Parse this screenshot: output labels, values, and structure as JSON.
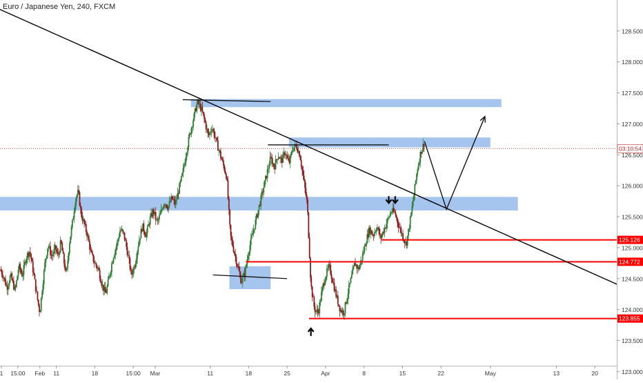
{
  "chart_data": {
    "type": "candlestick",
    "title": "Euro / Japanese Yen, 240, FXCM",
    "y_axis": {
      "ticks": [
        123.0,
        123.5,
        124.0,
        124.5,
        125.0,
        125.5,
        126.0,
        126.5,
        127.0,
        127.5,
        128.0,
        128.5
      ],
      "tick_labels": [
        "123.000",
        "123.500",
        "124.000",
        "124.500",
        "125.000",
        "125.500",
        "126.000",
        "126.500",
        "127.000",
        "127.500",
        "128.000",
        "128.500"
      ],
      "range": [
        122.87,
        129.0
      ],
      "position": "right"
    },
    "x_axis": {
      "tick_labels": [
        "1",
        "15:00",
        "Feb",
        "11",
        "18",
        "15:00",
        "Mar",
        "11",
        "18",
        "25",
        "Apr",
        "8",
        "15",
        "22",
        "May",
        "13",
        "20"
      ],
      "tick_dates": [
        "2019-02-01",
        "2019-02-04",
        "2019-02-08",
        "2019-02-11",
        "2019-02-18",
        "2019-02-25",
        "2019-03-01",
        "2019-03-11",
        "2019-03-18",
        "2019-03-25",
        "2019-04-01",
        "2019-04-08",
        "2019-04-15",
        "2019-04-22",
        "2019-05-01",
        "2019-05-13",
        "2019-05-20"
      ],
      "range": [
        "2019-01-31T18:00",
        "2019-05-24"
      ]
    },
    "colors": {
      "up": "#2e7d32",
      "down": "#8b1a1a",
      "zone": "#8fb5ea",
      "level_line": "#ff0000",
      "trend": "#000000",
      "price_line": "#c62828"
    },
    "price_path": [
      [
        "2019-01-31T18:00",
        124.65
      ],
      [
        "2019-02-01T08:00",
        124.55
      ],
      [
        "2019-02-02T00:00",
        124.35
      ],
      [
        "2019-02-02T16:00",
        124.55
      ],
      [
        "2019-02-03T12:00",
        124.3
      ],
      [
        "2019-02-04T04:00",
        124.7
      ],
      [
        "2019-02-04T20:00",
        124.55
      ],
      [
        "2019-02-05T12:00",
        124.85
      ],
      [
        "2019-02-06T04:00",
        124.95
      ],
      [
        "2019-02-06T20:00",
        124.6
      ],
      [
        "2019-02-07T12:00",
        124.2
      ],
      [
        "2019-02-08T00:00",
        123.95
      ],
      [
        "2019-02-08T12:00",
        124.4
      ],
      [
        "2019-02-09T00:00",
        124.8
      ],
      [
        "2019-02-09T12:00",
        125.05
      ],
      [
        "2019-02-10T04:00",
        124.85
      ],
      [
        "2019-02-10T20:00",
        125.0
      ],
      [
        "2019-02-11T08:00",
        124.85
      ],
      [
        "2019-02-11T20:00",
        125.1
      ],
      [
        "2019-02-12T08:00",
        124.8
      ],
      [
        "2019-02-12T20:00",
        124.55
      ],
      [
        "2019-02-13T08:00",
        125.05
      ],
      [
        "2019-02-14T00:00",
        125.45
      ],
      [
        "2019-02-14T12:00",
        125.8
      ],
      [
        "2019-02-15T00:00",
        125.9
      ],
      [
        "2019-02-15T12:00",
        125.55
      ],
      [
        "2019-02-16T04:00",
        125.35
      ],
      [
        "2019-02-16T16:00",
        125.2
      ],
      [
        "2019-02-17T08:00",
        124.9
      ],
      [
        "2019-02-18T00:00",
        124.75
      ],
      [
        "2019-02-18T16:00",
        124.65
      ],
      [
        "2019-02-19T08:00",
        124.4
      ],
      [
        "2019-02-20T00:00",
        124.25
      ],
      [
        "2019-02-20T16:00",
        124.55
      ],
      [
        "2019-02-21T08:00",
        124.85
      ],
      [
        "2019-02-22T00:00",
        125.05
      ],
      [
        "2019-02-22T16:00",
        125.3
      ],
      [
        "2019-02-23T08:00",
        125.2
      ],
      [
        "2019-02-24T00:00",
        124.9
      ],
      [
        "2019-02-24T16:00",
        124.55
      ],
      [
        "2019-02-25T08:00",
        124.75
      ],
      [
        "2019-02-26T00:00",
        125.1
      ],
      [
        "2019-02-26T16:00",
        125.35
      ],
      [
        "2019-02-27T08:00",
        125.2
      ],
      [
        "2019-02-28T00:00",
        125.45
      ],
      [
        "2019-02-28T16:00",
        125.6
      ],
      [
        "2019-03-01T08:00",
        125.4
      ],
      [
        "2019-03-02T00:00",
        125.55
      ],
      [
        "2019-03-02T16:00",
        125.75
      ],
      [
        "2019-03-03T08:00",
        125.65
      ],
      [
        "2019-03-04T00:00",
        125.8
      ],
      [
        "2019-03-04T16:00",
        125.7
      ],
      [
        "2019-03-05T08:00",
        125.95
      ],
      [
        "2019-03-06T00:00",
        126.2
      ],
      [
        "2019-03-06T16:00",
        126.55
      ],
      [
        "2019-03-07T08:00",
        126.85
      ],
      [
        "2019-03-08T00:00",
        127.1
      ],
      [
        "2019-03-08T16:00",
        127.35
      ],
      [
        "2019-03-09T08:00",
        127.25
      ],
      [
        "2019-03-10T00:00",
        127.05
      ],
      [
        "2019-03-10T16:00",
        126.8
      ],
      [
        "2019-03-11T08:00",
        126.95
      ],
      [
        "2019-03-12T00:00",
        126.75
      ],
      [
        "2019-03-12T16:00",
        126.55
      ],
      [
        "2019-03-13T08:00",
        126.35
      ],
      [
        "2019-03-14T00:00",
        126.15
      ],
      [
        "2019-03-14T16:00",
        125.2
      ],
      [
        "2019-03-15T08:00",
        124.95
      ],
      [
        "2019-03-16T00:00",
        124.7
      ],
      [
        "2019-03-16T16:00",
        124.45
      ],
      [
        "2019-03-17T08:00",
        124.6
      ],
      [
        "2019-03-18T00:00",
        124.95
      ],
      [
        "2019-03-18T16:00",
        125.2
      ],
      [
        "2019-03-19T08:00",
        125.45
      ],
      [
        "2019-03-20T00:00",
        125.7
      ],
      [
        "2019-03-20T16:00",
        125.95
      ],
      [
        "2019-03-21T08:00",
        126.2
      ],
      [
        "2019-03-22T00:00",
        126.45
      ],
      [
        "2019-03-22T16:00",
        126.3
      ],
      [
        "2019-03-23T08:00",
        126.5
      ],
      [
        "2019-03-24T00:00",
        126.4
      ],
      [
        "2019-03-24T16:00",
        126.55
      ],
      [
        "2019-03-25T08:00",
        126.35
      ],
      [
        "2019-03-26T00:00",
        126.6
      ],
      [
        "2019-03-26T16:00",
        126.65
      ],
      [
        "2019-03-27T08:00",
        126.5
      ],
      [
        "2019-03-28T00:00",
        126.1
      ],
      [
        "2019-03-28T16:00",
        125.7
      ],
      [
        "2019-03-29T08:00",
        124.4
      ],
      [
        "2019-03-30T00:00",
        124.0
      ],
      [
        "2019-03-30T16:00",
        123.95
      ],
      [
        "2019-03-31T08:00",
        124.3
      ],
      [
        "2019-04-01T00:00",
        124.55
      ],
      [
        "2019-04-01T16:00",
        124.7
      ],
      [
        "2019-04-02T08:00",
        124.45
      ],
      [
        "2019-04-03T00:00",
        124.2
      ],
      [
        "2019-04-03T16:00",
        124.0
      ],
      [
        "2019-04-04T08:00",
        123.95
      ],
      [
        "2019-04-05T00:00",
        124.25
      ],
      [
        "2019-04-05T16:00",
        124.5
      ],
      [
        "2019-04-06T08:00",
        124.75
      ],
      [
        "2019-04-07T00:00",
        124.65
      ],
      [
        "2019-04-07T16:00",
        124.85
      ],
      [
        "2019-04-08T08:00",
        125.1
      ],
      [
        "2019-04-09T00:00",
        125.3
      ],
      [
        "2019-04-09T16:00",
        125.2
      ],
      [
        "2019-04-10T08:00",
        125.35
      ],
      [
        "2019-04-11T00:00",
        125.15
      ],
      [
        "2019-04-11T16:00",
        125.3
      ],
      [
        "2019-04-12T08:00",
        125.45
      ],
      [
        "2019-04-13T00:00",
        125.6
      ],
      [
        "2019-04-13T16:00",
        125.55
      ],
      [
        "2019-04-14T08:00",
        125.35
      ],
      [
        "2019-04-15T00:00",
        125.2
      ],
      [
        "2019-04-15T16:00",
        125.05
      ],
      [
        "2019-04-16T08:00",
        125.4
      ],
      [
        "2019-04-17T00:00",
        125.8
      ],
      [
        "2019-04-17T16:00",
        126.25
      ],
      [
        "2019-04-18T08:00",
        126.55
      ],
      [
        "2019-04-19T00:00",
        126.7
      ]
    ],
    "zones": [
      {
        "from": "2019-03-07T12:00",
        "to": "2019-05-03",
        "low": 127.27,
        "high": 127.4
      },
      {
        "from": "2019-03-25T08:00",
        "to": "2019-05-01",
        "low": 126.62,
        "high": 126.78
      },
      {
        "from": "2019-01-31T18:00",
        "to": "2019-05-06",
        "low": 125.6,
        "high": 125.82
      },
      {
        "from": "2019-03-14T12:00",
        "to": "2019-03-22",
        "low": 124.33,
        "high": 124.7
      }
    ],
    "levels": [
      {
        "label": "125.126",
        "value": 125.126,
        "from": "2019-04-11T04:00"
      },
      {
        "label": "124.772",
        "value": 124.772,
        "from": "2019-03-17T12:00"
      },
      {
        "label": "123.855",
        "value": 123.855,
        "from": "2019-03-29T00:00"
      }
    ],
    "current_price": {
      "label": "03:10:54",
      "value": 126.6
    },
    "trend_line": {
      "x1": "2019-01-31T16:00",
      "y1": 128.85,
      "x2": "2019-05-24",
      "y2": 124.41
    },
    "drawn_segments": [
      {
        "x1": "2019-03-06T00:00",
        "y1": 127.39,
        "x2": "2019-03-22T00:00",
        "y2": 127.36
      },
      {
        "x1": "2019-03-21T12:00",
        "y1": 126.66,
        "x2": "2019-04-12T12:00",
        "y2": 126.66
      },
      {
        "x1": "2019-03-11T12:00",
        "y1": 124.56,
        "x2": "2019-03-25T00:00",
        "y2": 124.5
      }
    ],
    "projection": {
      "points": [
        [
          "2019-04-19T00:00",
          126.72
        ],
        [
          "2019-04-23T00:00",
          125.62
        ],
        [
          "2019-04-30T00:00",
          127.12
        ]
      ]
    },
    "markers": [
      {
        "date": "2019-03-29T08:00",
        "value": 123.73,
        "direction": "up"
      },
      {
        "date": "2019-04-12T12:00",
        "value": 125.72,
        "direction": "down"
      },
      {
        "date": "2019-04-13T16:00",
        "value": 125.72,
        "direction": "down"
      }
    ]
  }
}
